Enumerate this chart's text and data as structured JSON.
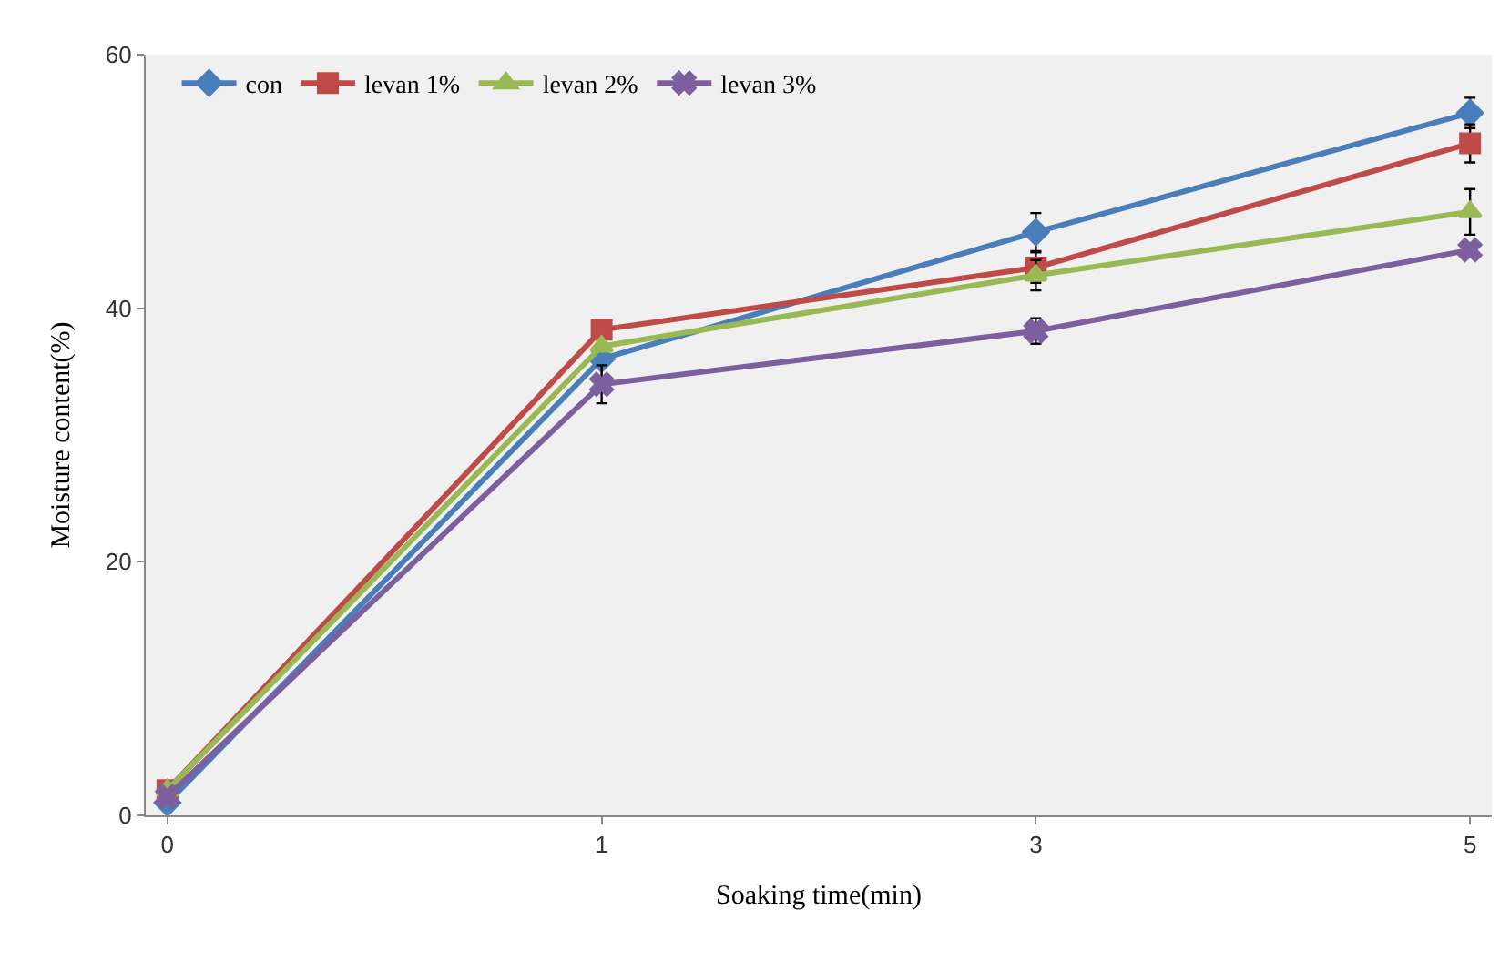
{
  "chart_data": {
    "type": "line",
    "xlabel": "Soaking time(min)",
    "ylabel": "Moisture content(%)",
    "categories": [
      "0",
      "1",
      "3",
      "5"
    ],
    "ylim": [
      0,
      60
    ],
    "yticks": [
      0,
      20,
      40,
      60
    ],
    "grid": false,
    "legend": "top left",
    "series": [
      {
        "name": "con",
        "color": "#4a7ebb",
        "marker": "diamond",
        "values": [
          1.0,
          36.0,
          46.0,
          55.4
        ],
        "errors": [
          null,
          null,
          1.5,
          1.2
        ]
      },
      {
        "name": "levan 1%",
        "color": "#be4b48",
        "marker": "square",
        "values": [
          2.0,
          38.3,
          43.2,
          53.0
        ],
        "errors": [
          null,
          null,
          1.2,
          1.5
        ]
      },
      {
        "name": "levan 2%",
        "color": "#98b954",
        "marker": "triangle",
        "values": [
          2.0,
          37.0,
          42.6,
          47.6
        ],
        "errors": [
          null,
          null,
          1.2,
          1.8
        ]
      },
      {
        "name": "levan 3%",
        "color": "#7d5fa0",
        "marker": "cross",
        "values": [
          1.5,
          34.0,
          38.2,
          44.6
        ],
        "errors": [
          null,
          1.5,
          1.0,
          null
        ]
      }
    ]
  }
}
